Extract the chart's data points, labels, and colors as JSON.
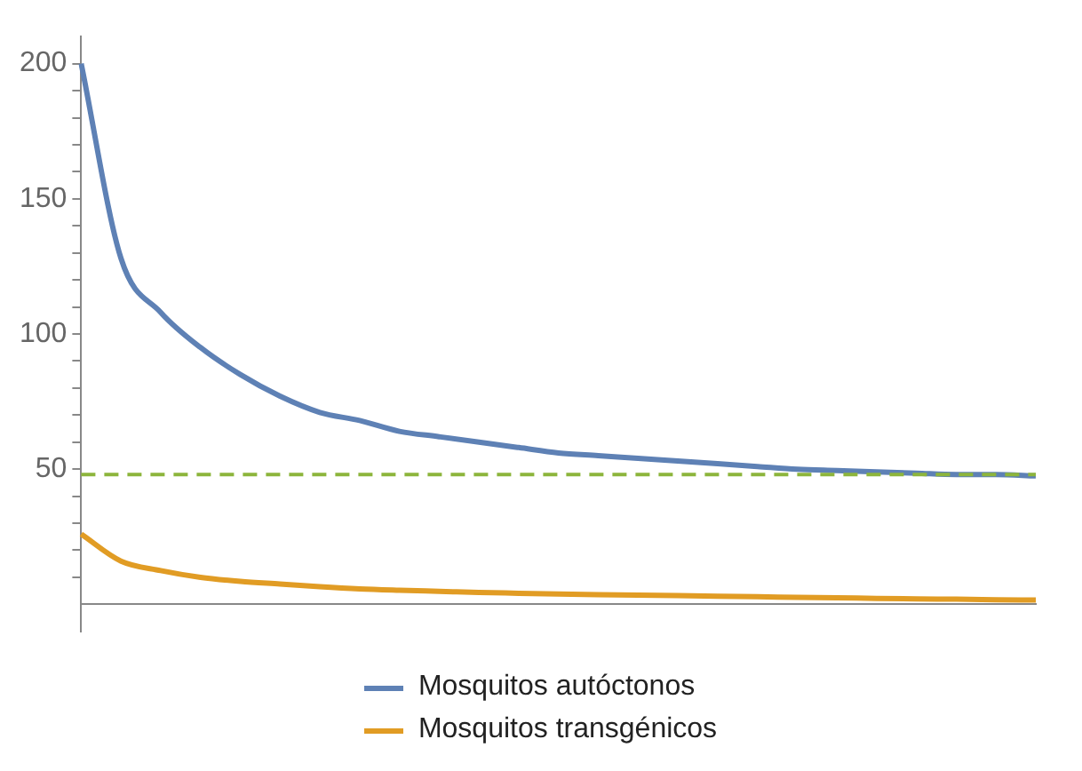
{
  "chart_data": {
    "type": "line",
    "categories": [
      null,
      null,
      null,
      null,
      null,
      null,
      null,
      null,
      null,
      null,
      null,
      null,
      null,
      null,
      null,
      null,
      null,
      null,
      null,
      null,
      null,
      null,
      null,
      null,
      null
    ],
    "series": [
      {
        "name": "Mosquitos autóctonos",
        "color": "#5e81b5",
        "values": [
          200,
          128,
          108,
          95,
          85,
          77,
          71,
          68,
          64,
          62,
          60,
          58,
          56,
          55,
          54,
          53,
          52,
          51,
          50,
          49.5,
          49,
          48.5,
          48,
          48,
          47.5
        ]
      },
      {
        "name": "Mosquitos transgénicos",
        "color": "#e19c24",
        "values": [
          26,
          16,
          12.5,
          10,
          8.5,
          7.5,
          6.5,
          5.7,
          5.2,
          4.8,
          4.4,
          4.1,
          3.8,
          3.6,
          3.4,
          3.2,
          3,
          2.8,
          2.6,
          2.4,
          2.2,
          2,
          1.9,
          1.7,
          1.6
        ]
      }
    ],
    "ylim": [
      -10,
      210
    ],
    "yticks": [
      {
        "value": 10,
        "label": null
      },
      {
        "value": 20,
        "label": null
      },
      {
        "value": 30,
        "label": null
      },
      {
        "value": 40,
        "label": null
      },
      50,
      {
        "value": 60,
        "label": null
      },
      {
        "value": 70,
        "label": null
      },
      {
        "value": 80,
        "label": null
      },
      {
        "value": 90,
        "label": null
      },
      100,
      {
        "value": 110,
        "label": null
      },
      {
        "value": 120,
        "label": null
      },
      {
        "value": 130,
        "label": null
      },
      {
        "value": 140,
        "label": null
      },
      150,
      {
        "value": 160,
        "label": null
      },
      {
        "value": 170,
        "label": null
      },
      {
        "value": 180,
        "label": null
      },
      {
        "value": 190,
        "label": null
      },
      200
    ],
    "ref_lines": [
      {
        "axis": "y",
        "value": 48,
        "color": "#8db53c",
        "line_style": "dashed"
      }
    ],
    "grid": false,
    "legend": "bottom",
    "marker": "none",
    "line_style": "solid",
    "tick_labels": "y"
  }
}
